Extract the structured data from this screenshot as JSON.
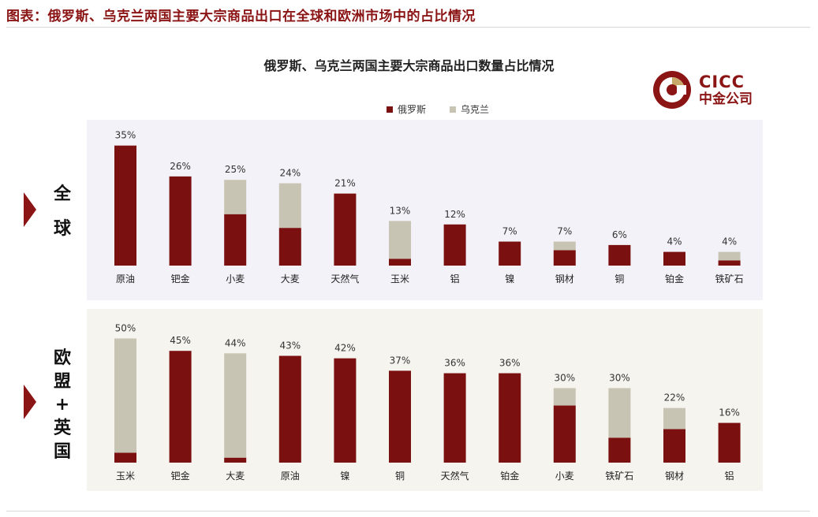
{
  "header": {
    "title": "图表：俄罗斯、乌克兰两国主要大宗商品出口在全球和欧洲市场中的占比情况"
  },
  "logo": {
    "name": "CICC",
    "name_cn": "中金公司"
  },
  "colors": {
    "russia": "#7b1010",
    "ukraine": "#c8c4b3",
    "accent": "#8b1414"
  },
  "chart_data": {
    "type": "bar",
    "stacked": true,
    "title": "俄罗斯、乌克兰两国主要大宗商品出口数量占比情况",
    "legend": {
      "position": "top-center",
      "entries": [
        "俄罗斯",
        "乌克兰"
      ]
    },
    "panels": [
      {
        "label": "全球",
        "categories": [
          "原油",
          "钯金",
          "小麦",
          "大麦",
          "天然气",
          "玉米",
          "铝",
          "镍",
          "钢材",
          "铜",
          "铂金",
          "铁矿石"
        ],
        "totals_labels": [
          "35%",
          "26%",
          "25%",
          "24%",
          "21%",
          "13%",
          "12%",
          "7%",
          "7%",
          "6%",
          "4%",
          "4%"
        ],
        "series": [
          {
            "name": "俄罗斯",
            "values": [
              35,
              26,
              15,
              11,
              21,
              2,
              12,
              7,
              4.5,
              6,
              4,
              1.5
            ]
          },
          {
            "name": "乌克兰",
            "values": [
              0,
              0,
              10,
              13,
              0,
              11,
              0,
              0,
              2.5,
              0,
              0,
              2.5
            ]
          }
        ],
        "ylim": [
          0,
          37
        ]
      },
      {
        "label": "欧盟+英国",
        "categories": [
          "玉米",
          "钯金",
          "大麦",
          "原油",
          "镍",
          "铜",
          "天然气",
          "铂金",
          "小麦",
          "铁矿石",
          "钢材",
          "铝"
        ],
        "totals_labels": [
          "50%",
          "45%",
          "44%",
          "43%",
          "42%",
          "37%",
          "36%",
          "36%",
          "30%",
          "30%",
          "22%",
          "16%"
        ],
        "series": [
          {
            "name": "俄罗斯",
            "values": [
              4,
              45,
              2,
              43,
              42,
              37,
              36,
              36,
              23,
              10,
              13.5,
              16
            ]
          },
          {
            "name": "乌克兰",
            "values": [
              46,
              0,
              42,
              0,
              0,
              0,
              0,
              0,
              7,
              20,
              8.5,
              0
            ]
          }
        ],
        "ylim": [
          0,
          53
        ]
      }
    ]
  }
}
